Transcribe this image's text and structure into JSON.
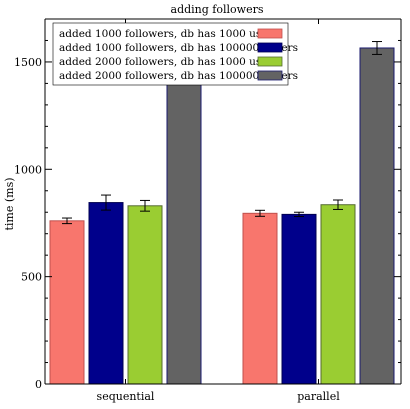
{
  "chart_data": {
    "type": "bar",
    "title": "adding followers",
    "xlabel": "",
    "ylabel": "time (ms)",
    "ylim": [
      0,
      1700
    ],
    "yticks_major": [
      0,
      500,
      1000,
      1500
    ],
    "ytick_minor_step": 100,
    "categories": [
      "sequential",
      "parallel"
    ],
    "legend_position": "top-left",
    "grid": false,
    "series": [
      {
        "name": "added 1000 followers, db has 1000 users",
        "color": "#f8766d",
        "edge": "#c0504d",
        "values": [
          760,
          795
        ],
        "errors": [
          13,
          14
        ]
      },
      {
        "name": "added 1000 followers, db has 1000000 users",
        "color": "#00008b",
        "edge": "#000050",
        "values": [
          845,
          790
        ],
        "errors": [
          35,
          10
        ]
      },
      {
        "name": "added 2000 followers, db has 1000 users",
        "color": "#9acd32",
        "edge": "#556b2f",
        "values": [
          830,
          835
        ],
        "errors": [
          25,
          22
        ]
      },
      {
        "name": "added 2000 followers, db has 1000000 users",
        "color": "#636363",
        "edge": "#1a1a6e",
        "values": [
          1600,
          1565
        ],
        "errors": [
          30,
          30
        ]
      }
    ]
  }
}
